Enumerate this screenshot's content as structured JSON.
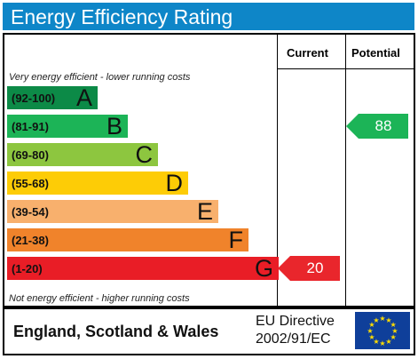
{
  "title": "Energy Efficiency Rating",
  "columns": {
    "current": "Current",
    "potential": "Potential"
  },
  "notes": {
    "top": "Very energy efficient - lower running costs",
    "bottom": "Not energy efficient - higher running costs"
  },
  "bands": [
    {
      "range": "(92-100)",
      "letter": "A",
      "color": "#0c8a47"
    },
    {
      "range": "(81-91)",
      "letter": "B",
      "color": "#1cb457"
    },
    {
      "range": "(69-80)",
      "letter": "C",
      "color": "#8dc63f"
    },
    {
      "range": "(55-68)",
      "letter": "D",
      "color": "#fdcc06"
    },
    {
      "range": "(39-54)",
      "letter": "E",
      "color": "#f8b06d"
    },
    {
      "range": "(21-38)",
      "letter": "F",
      "color": "#f0832b"
    },
    {
      "range": "(1-20)",
      "letter": "G",
      "color": "#e91d26"
    }
  ],
  "ratings": {
    "current": {
      "value": "20",
      "band": "G",
      "color": "#e9262c"
    },
    "potential": {
      "value": "88",
      "band": "B",
      "color": "#1cb457"
    }
  },
  "footer": {
    "region": "England, Scotland & Wales",
    "directive_line1": "EU Directive",
    "directive_line2": "2002/91/EC"
  },
  "colors": {
    "title_bar": "#0e86c8",
    "eu_flag": "#0f3f9a",
    "eu_stars": "#ffdd00"
  },
  "icons": {
    "flag": "eu-flag-icon"
  }
}
